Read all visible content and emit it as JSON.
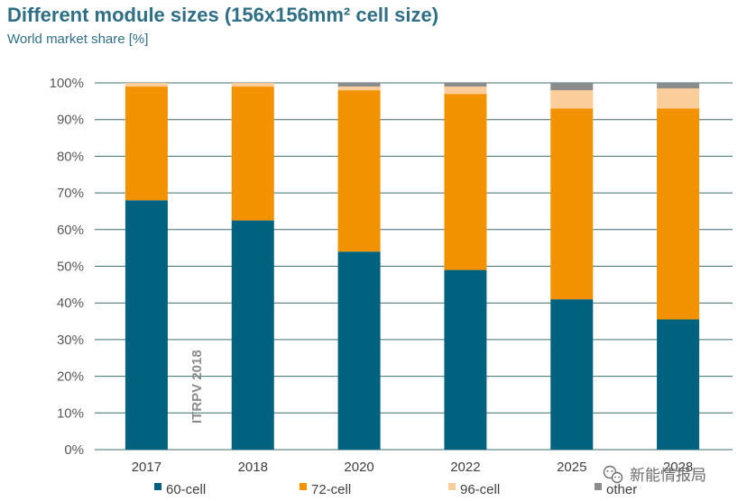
{
  "header": {
    "title": "Different module sizes (156x156mm² cell size)",
    "subtitle": "World market share [%]"
  },
  "watermark": "ITRPV 2018",
  "badge": {
    "icon": "wechat-icon",
    "text": "新能情报局"
  },
  "colors": {
    "60-cell": "#00627e",
    "72-cell": "#f39200",
    "96-cell": "#fbcd9a",
    "other": "#8c8c8c",
    "grid": "#3f6f6f",
    "title": "#2e6f86"
  },
  "chart_data": {
    "type": "bar",
    "stacked": true,
    "categories": [
      "2017",
      "2018",
      "2020",
      "2022",
      "2025",
      "2028"
    ],
    "series": [
      {
        "name": "60-cell",
        "values": [
          68,
          62.5,
          54,
          49,
          41,
          35.5
        ]
      },
      {
        "name": "72-cell",
        "values": [
          31,
          36.5,
          44,
          48,
          52,
          57.5
        ]
      },
      {
        "name": "96-cell",
        "values": [
          1,
          1,
          1,
          2,
          5,
          5.5
        ]
      },
      {
        "name": "other",
        "values": [
          0,
          0,
          1,
          1,
          2,
          1.5
        ]
      }
    ],
    "ylim": [
      0,
      100
    ],
    "yticks": [
      "0%",
      "10%",
      "20%",
      "30%",
      "40%",
      "50%",
      "60%",
      "70%",
      "80%",
      "90%",
      "100%"
    ],
    "grid": true,
    "legend_position": "bottom"
  }
}
